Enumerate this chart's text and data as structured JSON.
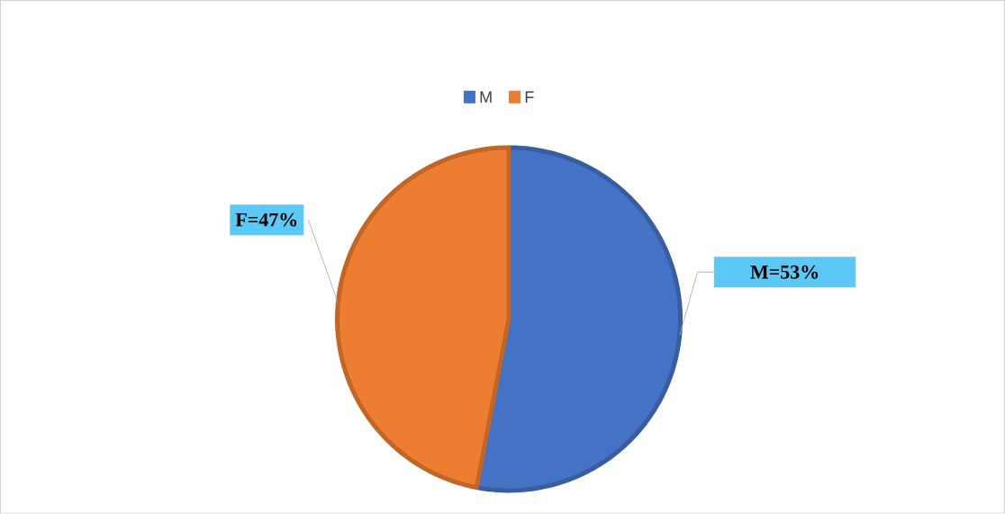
{
  "chart_data": {
    "type": "pie",
    "categories": [
      "M",
      "F"
    ],
    "values": [
      53,
      47
    ],
    "colors": [
      "#4472c4",
      "#ed7d31"
    ],
    "value_labels": [
      "M=53%",
      "F=47%"
    ],
    "legend": "top"
  }
}
